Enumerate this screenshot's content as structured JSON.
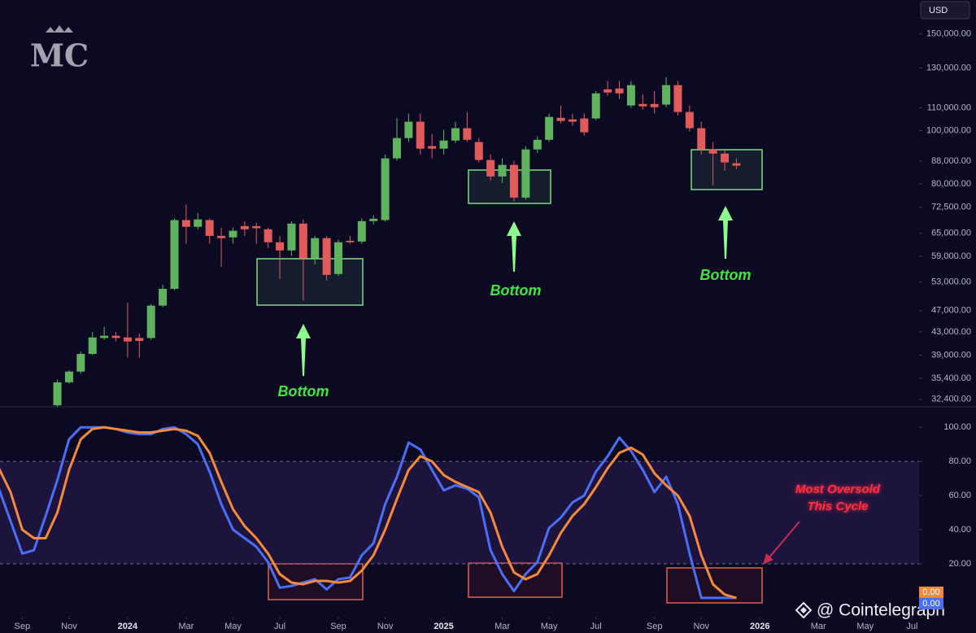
{
  "logo": "MC",
  "watermark": "@ Cointelegraph",
  "chart_data": [
    {
      "type": "candlestick",
      "currency": "USD",
      "log_scale": true,
      "up_color": "#5fb35f",
      "down_color": "#e25b5b",
      "x": [
        0,
        1,
        2,
        3,
        4,
        5,
        6,
        7,
        8,
        9,
        10,
        11,
        12,
        13,
        14,
        15,
        16,
        17,
        18,
        19,
        20,
        21,
        22,
        23,
        24,
        25,
        26,
        27,
        28,
        29,
        30,
        31,
        32,
        33,
        34,
        35,
        36,
        37,
        38,
        39,
        40,
        41,
        42,
        43,
        44,
        45,
        46,
        47,
        48,
        49,
        50,
        51,
        52,
        53,
        54,
        55,
        56,
        57,
        58
      ],
      "open": [
        31600,
        34800,
        36400,
        39200,
        41900,
        42300,
        42000,
        41900,
        41900,
        48000,
        51500,
        68700,
        66800,
        68700,
        64300,
        63900,
        67000,
        67000,
        66100,
        62600,
        60500,
        67700,
        58500,
        63700,
        54800,
        63000,
        62800,
        68400,
        68700,
        89000,
        96900,
        103800,
        93700,
        92700,
        95900,
        101000,
        95300,
        88400,
        82500,
        86600,
        75500,
        92400,
        96200,
        105500,
        104800,
        105200,
        105200,
        118900,
        119300,
        111100,
        111800,
        111800,
        111500,
        121000,
        108100,
        101000,
        92400,
        90800,
        87200
      ],
      "high": [
        35200,
        36600,
        39600,
        43000,
        43900,
        43000,
        48600,
        42700,
        48300,
        52400,
        69200,
        73300,
        70800,
        69200,
        66600,
        66600,
        68400,
        68000,
        66600,
        64300,
        68400,
        68900,
        64300,
        64300,
        63300,
        64300,
        69200,
        70100,
        90500,
        105500,
        107400,
        107400,
        98600,
        100300,
        103800,
        108100,
        96900,
        90500,
        89000,
        88100,
        93700,
        97600,
        107400,
        111100,
        107400,
        107400,
        118100,
        123100,
        123100,
        123100,
        116500,
        118100,
        125100,
        123100,
        111100,
        103800,
        95300,
        92100,
        89000
      ],
      "low": [
        31400,
        34600,
        36100,
        39000,
        41600,
        41300,
        38600,
        38600,
        41600,
        47700,
        51200,
        62200,
        66100,
        62200,
        56500,
        62200,
        64300,
        62200,
        61100,
        53700,
        59100,
        49000,
        57100,
        53300,
        54300,
        62200,
        62200,
        67500,
        68200,
        88100,
        95300,
        90500,
        89000,
        90500,
        95000,
        95300,
        87500,
        81100,
        80300,
        74300,
        74800,
        91100,
        95300,
        103100,
        102000,
        97900,
        104500,
        115700,
        114200,
        110000,
        109200,
        107400,
        110300,
        106600,
        99600,
        90500,
        79500,
        84500,
        85100
      ],
      "close": [
        34800,
        36400,
        39200,
        42000,
        42300,
        41900,
        41300,
        41400,
        48000,
        51500,
        68700,
        66800,
        68900,
        64300,
        63700,
        65700,
        66100,
        66400,
        62600,
        60500,
        67700,
        58500,
        63700,
        54600,
        62600,
        62600,
        68400,
        69100,
        89000,
        96900,
        103800,
        92700,
        92700,
        95900,
        101000,
        96200,
        88400,
        82500,
        86600,
        75500,
        92400,
        96200,
        105900,
        104100,
        103800,
        99300,
        116900,
        117300,
        116900,
        121000,
        110700,
        110300,
        121000,
        108100,
        101000,
        92400,
        90800,
        87500,
        86300
      ],
      "ylim": [
        31400,
        172900
      ],
      "yticks": [
        {
          "value": 150000,
          "label": "150,000.00"
        },
        {
          "value": 130000,
          "label": "130,000.00"
        },
        {
          "value": 110000,
          "label": "110,000.00"
        },
        {
          "value": 100000,
          "label": "100,000.00"
        },
        {
          "value": 88000,
          "label": "88,000.00"
        },
        {
          "value": 80000,
          "label": "80,000.00"
        },
        {
          "value": 72500,
          "label": "72,500.00"
        },
        {
          "value": 65000,
          "label": "65,000.00"
        },
        {
          "value": 59000,
          "label": "59,000.00"
        },
        {
          "value": 53000,
          "label": "53,000.00"
        },
        {
          "value": 47000,
          "label": "47,000.00"
        },
        {
          "value": 43000,
          "label": "43,000.00"
        },
        {
          "value": 39000,
          "label": "39,000.00"
        },
        {
          "value": 35400,
          "label": "35,400.00"
        },
        {
          "value": 32400,
          "label": "32,400.00"
        }
      ],
      "xlim": [
        -4.9,
        73.6
      ],
      "xticks": [
        {
          "value": -3,
          "label": "Sep"
        },
        {
          "value": 1,
          "label": "Nov"
        },
        {
          "value": 6,
          "label": "2024"
        },
        {
          "value": 11,
          "label": "Mar"
        },
        {
          "value": 15,
          "label": "May"
        },
        {
          "value": 19,
          "label": "Jul"
        },
        {
          "value": 24,
          "label": "Sep"
        },
        {
          "value": 28,
          "label": "Nov"
        },
        {
          "value": 33,
          "label": "2025"
        },
        {
          "value": 38,
          "label": "Mar"
        },
        {
          "value": 42,
          "label": "May"
        },
        {
          "value": 46,
          "label": "Jul"
        },
        {
          "value": 51,
          "label": "Sep"
        },
        {
          "value": 55,
          "label": "Nov"
        },
        {
          "value": 60,
          "label": "2026"
        },
        {
          "value": 65,
          "label": "Mar"
        },
        {
          "value": 69,
          "label": "May"
        },
        {
          "value": 73,
          "label": "Jul"
        }
      ],
      "annotations": [
        "Bottom",
        "Bottom",
        "Bottom"
      ]
    },
    {
      "type": "line",
      "x": [
        -5,
        -4,
        -3,
        -2,
        -1,
        0,
        1,
        2,
        3,
        4,
        5,
        6,
        7,
        8,
        9,
        10,
        11,
        12,
        13,
        14,
        15,
        16,
        17,
        18,
        19,
        20,
        21,
        22,
        23,
        24,
        25,
        26,
        27,
        28,
        29,
        30,
        31,
        32,
        33,
        34,
        35,
        36,
        37,
        38,
        39,
        40,
        41,
        42,
        43,
        44,
        45,
        46,
        47,
        48,
        49,
        50,
        51,
        52,
        53,
        54,
        55,
        56,
        57,
        58
      ],
      "series": [
        {
          "color": "#4a6ef5",
          "last_value_label": "0.00",
          "values": [
            64,
            45,
            26,
            28,
            48,
            69,
            93,
            100,
            100,
            100,
            99,
            97,
            96,
            96,
            99,
            100,
            96,
            90,
            74,
            55,
            40,
            35,
            30,
            21,
            6,
            7,
            9,
            11,
            5,
            11,
            12,
            25,
            32,
            55,
            71,
            91,
            87,
            75,
            63,
            66,
            64,
            59,
            28,
            14,
            4,
            14,
            21,
            41,
            47,
            56,
            60,
            74,
            83,
            94,
            86,
            75,
            62,
            71,
            55,
            26,
            0,
            0,
            0,
            0
          ]
        },
        {
          "color": "#f58a3d",
          "last_value_label": "0.00",
          "values": [
            76,
            62,
            40,
            35,
            35,
            50,
            75,
            93,
            99,
            100,
            99,
            98,
            97,
            97,
            98,
            99,
            98,
            95,
            85,
            68,
            52,
            42,
            35,
            26,
            14,
            9,
            8,
            10,
            10,
            9,
            10,
            16,
            25,
            40,
            58,
            75,
            83,
            80,
            72,
            68,
            65,
            62,
            50,
            30,
            15,
            11,
            14,
            25,
            38,
            48,
            55,
            65,
            76,
            85,
            88,
            84,
            73,
            66,
            60,
            48,
            25,
            8,
            2,
            0
          ]
        }
      ],
      "band": [
        20,
        80
      ],
      "ylim": [
        -11,
        112
      ],
      "yticks": [
        {
          "value": 100,
          "label": "100.00"
        },
        {
          "value": 80,
          "label": "80.00"
        },
        {
          "value": 60,
          "label": "60.00"
        },
        {
          "value": 40,
          "label": "40.00"
        },
        {
          "value": 20,
          "label": "20.00"
        }
      ],
      "annotation": [
        "Most Oversold",
        "This Cycle"
      ]
    }
  ]
}
